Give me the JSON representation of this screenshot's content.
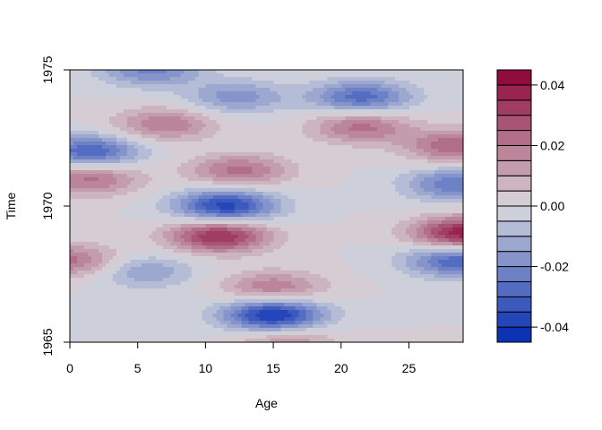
{
  "chart_data": {
    "type": "heatmap",
    "subtype": "filled-contour",
    "xlabel": "Age",
    "ylabel": "Time",
    "xlim": [
      0,
      29
    ],
    "ylim": [
      1965,
      1975
    ],
    "x_ticks": [
      0,
      5,
      10,
      15,
      20,
      25
    ],
    "y_ticks": [
      1965,
      1970,
      1975
    ],
    "x_tick_labels": [
      "0",
      "5",
      "10",
      "15",
      "20",
      "25"
    ],
    "y_tick_labels": [
      "1965",
      "1970",
      "1975"
    ],
    "grid": false,
    "legend": {
      "position": "right",
      "levels": [
        -0.045,
        -0.04,
        -0.035,
        -0.03,
        -0.025,
        -0.02,
        -0.015,
        -0.01,
        -0.005,
        0,
        0.005,
        0.01,
        0.015,
        0.02,
        0.025,
        0.03,
        0.035,
        0.04,
        0.045
      ],
      "ticks": [
        0.04,
        0.02,
        0.0,
        -0.02,
        -0.04
      ],
      "tick_labels": [
        "0.04",
        "0.02",
        "0.00",
        "-0.02",
        "-0.04"
      ]
    },
    "palette_low": "#0029b1",
    "palette_mid": "#d9d9dc",
    "palette_high": "#8b0033",
    "features": [
      {
        "x": 15,
        "y": 1966,
        "value": -0.042
      },
      {
        "x": 11.5,
        "y": 1970,
        "value": -0.038
      },
      {
        "x": 11,
        "y": 1968.9,
        "value": 0.036
      },
      {
        "x": 29,
        "y": 1969.0,
        "value": 0.04
      },
      {
        "x": 28.5,
        "y": 1970.8,
        "value": -0.025
      },
      {
        "x": 28.5,
        "y": 1968.0,
        "value": -0.03
      },
      {
        "x": 28.5,
        "y": 1972.2,
        "value": 0.025
      },
      {
        "x": 21.5,
        "y": 1974.0,
        "value": -0.028
      },
      {
        "x": 21.5,
        "y": 1972.9,
        "value": 0.022
      },
      {
        "x": 1.5,
        "y": 1972.0,
        "value": -0.03
      },
      {
        "x": 1.5,
        "y": 1971.0,
        "value": 0.022
      },
      {
        "x": 0,
        "y": 1968.0,
        "value": 0.022
      },
      {
        "x": 7,
        "y": 1973.0,
        "value": 0.02
      },
      {
        "x": 12.5,
        "y": 1971.3,
        "value": 0.022
      },
      {
        "x": 15,
        "y": 1967.0,
        "value": 0.02
      },
      {
        "x": 6,
        "y": 1975.0,
        "value": -0.022
      },
      {
        "x": 12.3,
        "y": 1974.0,
        "value": -0.018
      },
      {
        "x": 16,
        "y": 1965.0,
        "value": 0.015
      },
      {
        "x": 5.5,
        "y": 1967.6,
        "value": -0.015
      }
    ]
  }
}
